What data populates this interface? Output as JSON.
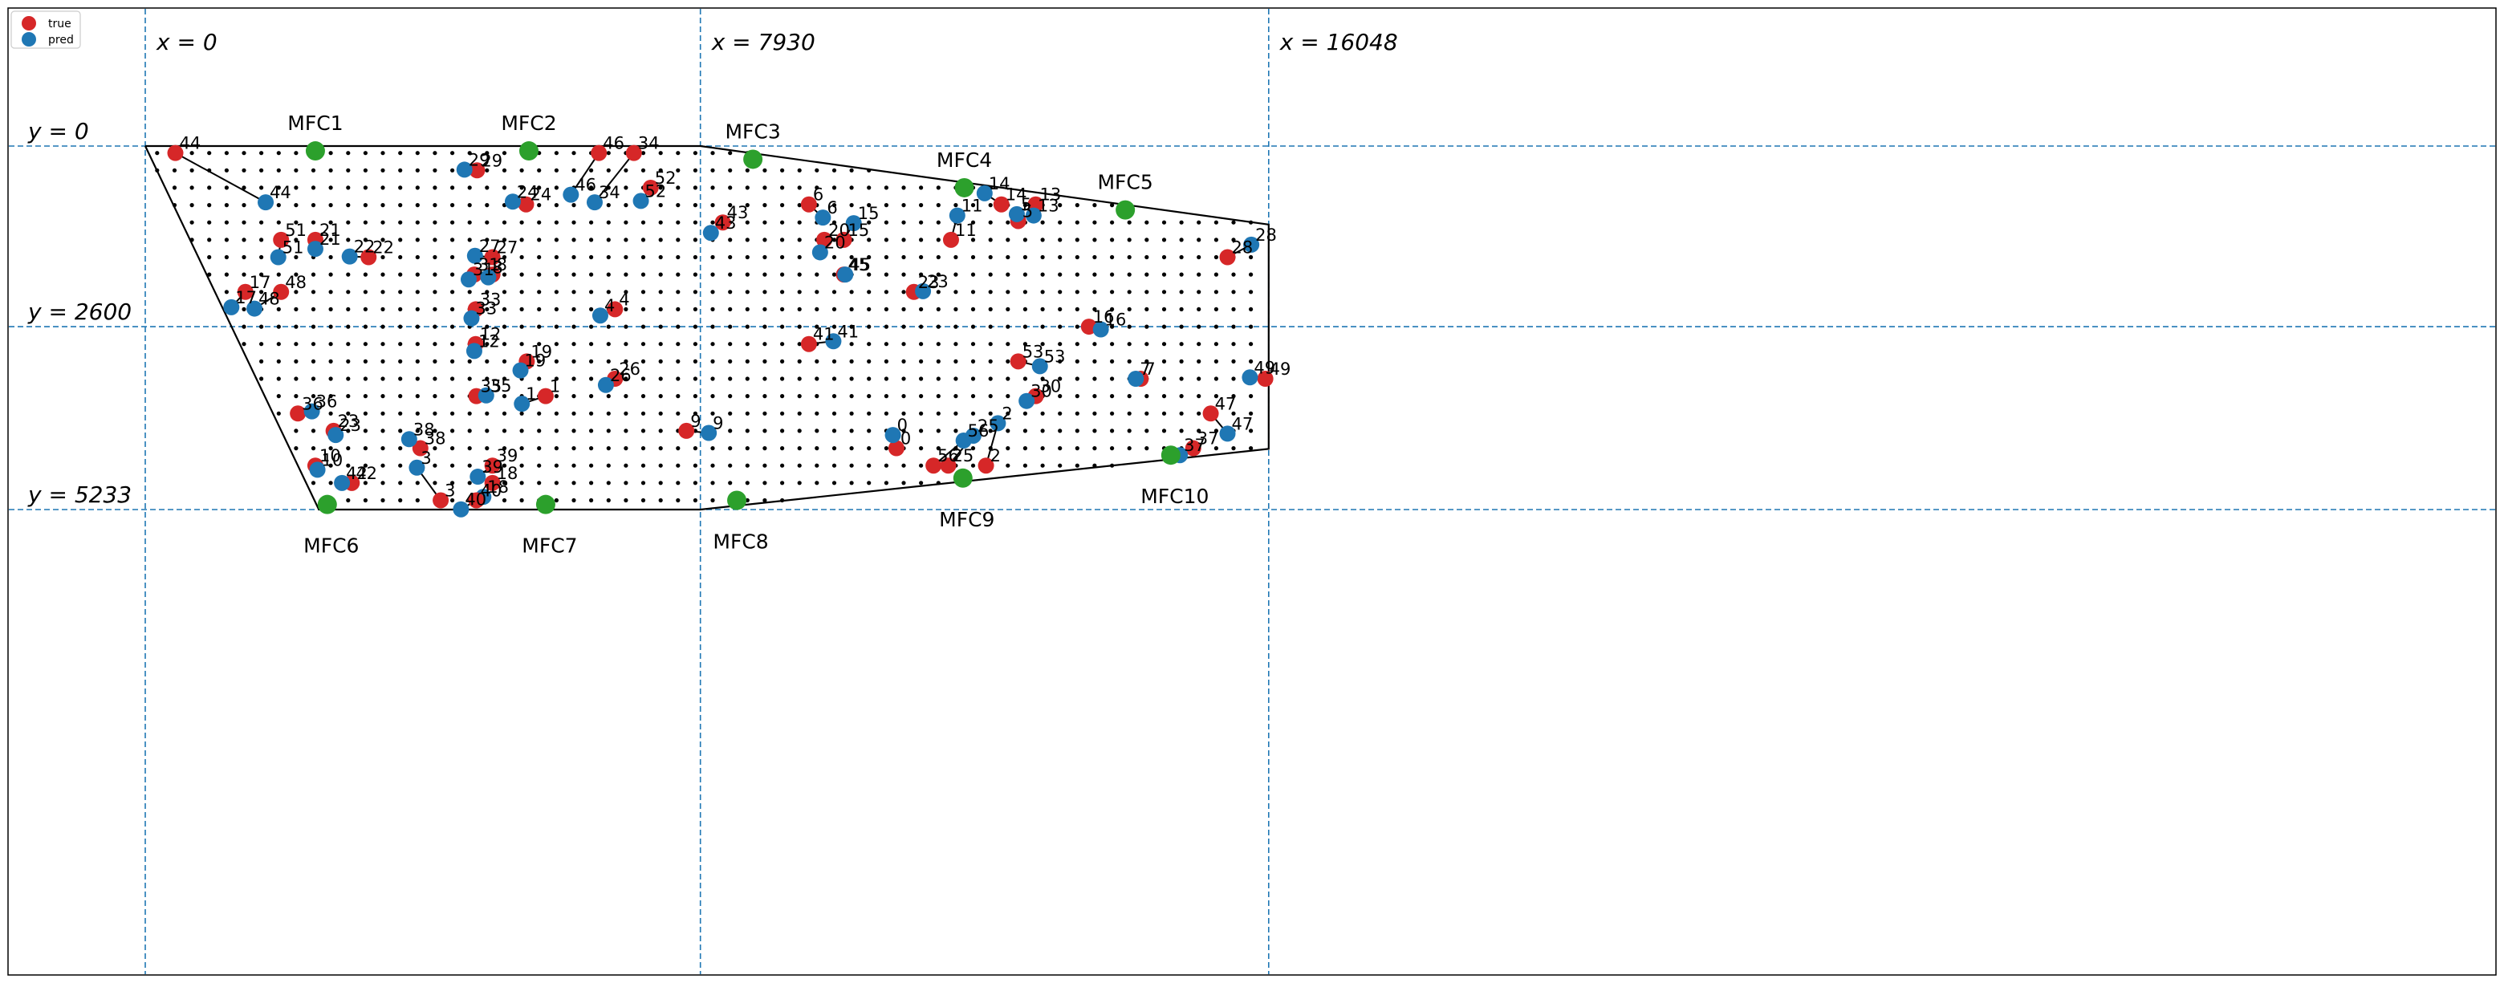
{
  "chart_data": {
    "type": "scatter",
    "title": "",
    "xlabel": "",
    "ylabel": "",
    "xlim": [
      -1700,
      17600
    ],
    "ylim": [
      -1000,
      6100
    ],
    "grid": false,
    "y_inverted": true,
    "legend": {
      "placement": "top-left",
      "entries": [
        {
          "label": "true",
          "color": "#d62728"
        },
        {
          "label": "pred",
          "color": "#1f77b4"
        }
      ]
    },
    "reference_lines": {
      "vertical": [
        {
          "value": 0,
          "label": "x = 0"
        },
        {
          "value": 7930,
          "label": "x = 7930"
        },
        {
          "value": 16048,
          "label": "x = 16048"
        }
      ],
      "horizontal": [
        {
          "value": 0,
          "label": "y = 0"
        },
        {
          "value": 2600,
          "label": "y = 2600"
        },
        {
          "value": 5233,
          "label": "y = 5233"
        }
      ]
    },
    "boundary": [
      [
        0,
        0
      ],
      [
        7930,
        0
      ],
      [
        16048,
        1130
      ],
      [
        16048,
        4360
      ],
      [
        7930,
        5233
      ],
      [
        2480,
        5233
      ],
      [
        0,
        0
      ]
    ],
    "grid_dots": {
      "x_start": 170,
      "x_step": 248,
      "x_end": 16048,
      "y_start": 100,
      "y_step": 250,
      "y_end": 5233
    },
    "mfc": [
      {
        "name": "MFC1",
        "x": 2430,
        "y": 70
      },
      {
        "name": "MFC2",
        "x": 5480,
        "y": 70
      },
      {
        "name": "MFC3",
        "x": 8680,
        "y": 190
      },
      {
        "name": "MFC4",
        "x": 11700,
        "y": 600
      },
      {
        "name": "MFC5",
        "x": 14000,
        "y": 920
      },
      {
        "name": "MFC6",
        "x": 2600,
        "y": 5160
      },
      {
        "name": "MFC7",
        "x": 5720,
        "y": 5160
      },
      {
        "name": "MFC8",
        "x": 8450,
        "y": 5100
      },
      {
        "name": "MFC9",
        "x": 11680,
        "y": 4780
      },
      {
        "name": "MFC10",
        "x": 14650,
        "y": 4450
      }
    ],
    "points": [
      {
        "id": "44",
        "true": [
          430,
          100
        ],
        "pred": [
          1720,
          810
        ]
      },
      {
        "id": "29",
        "true": [
          4740,
          350
        ],
        "pred": [
          4560,
          340
        ]
      },
      {
        "id": "46",
        "true": [
          6480,
          100
        ],
        "pred": [
          6080,
          700
        ]
      },
      {
        "id": "34",
        "true": [
          6980,
          100
        ],
        "pred": [
          6420,
          810
        ]
      },
      {
        "id": "52",
        "true": [
          7220,
          600
        ],
        "pred": [
          7080,
          790
        ]
      },
      {
        "id": "24",
        "true": [
          5440,
          840
        ],
        "pred": [
          5250,
          800
        ]
      },
      {
        "id": "51",
        "true": [
          1940,
          1350
        ],
        "pred": [
          1900,
          1600
        ]
      },
      {
        "id": "21",
        "true": [
          2430,
          1350
        ],
        "pred": [
          2430,
          1480
        ]
      },
      {
        "id": "22",
        "true": [
          3190,
          1600
        ],
        "pred": [
          2920,
          1590
        ]
      },
      {
        "id": "27",
        "true": [
          4960,
          1600
        ],
        "pred": [
          4710,
          1580
        ]
      },
      {
        "id": "31",
        "true": [
          4700,
          1850
        ],
        "pred": [
          4620,
          1920
        ]
      },
      {
        "id": "8",
        "true": [
          4960,
          1850
        ],
        "pred": [
          4900,
          1890
        ]
      },
      {
        "id": "17",
        "true": [
          1430,
          2100
        ],
        "pred": [
          1230,
          2320
        ]
      },
      {
        "id": "48",
        "true": [
          1940,
          2100
        ],
        "pred": [
          1560,
          2340
        ]
      },
      {
        "id": "33",
        "true": [
          4720,
          2350
        ],
        "pred": [
          4660,
          2480
        ]
      },
      {
        "id": "4",
        "true": [
          6710,
          2350
        ],
        "pred": [
          6500,
          2440
        ]
      },
      {
        "id": "43",
        "true": [
          8250,
          1100
        ],
        "pred": [
          8080,
          1250
        ]
      },
      {
        "id": "6",
        "true": [
          9480,
          840
        ],
        "pred": [
          9680,
          1030
        ]
      },
      {
        "id": "15",
        "true": [
          9980,
          1350
        ],
        "pred": [
          10120,
          1110
        ]
      },
      {
        "id": "20",
        "true": [
          9700,
          1350
        ],
        "pred": [
          9640,
          1530
        ]
      },
      {
        "id": "11",
        "true": [
          11510,
          1350
        ],
        "pred": [
          11600,
          1000
        ]
      },
      {
        "id": "14",
        "true": [
          12230,
          840
        ],
        "pred": [
          11990,
          680
        ]
      },
      {
        "id": "5",
        "true": [
          12470,
          1080
        ],
        "pred": [
          12450,
          980
        ]
      },
      {
        "id": "13",
        "true": [
          12720,
          840
        ],
        "pred": [
          12690,
          1000
        ]
      },
      {
        "id": "45",
        "true": [
          9980,
          1850
        ],
        "pred": [
          10000,
          1850
        ]
      },
      {
        "id": "23",
        "true": [
          10980,
          2100
        ],
        "pred": [
          11110,
          2090
        ]
      },
      {
        "id": "28",
        "true": [
          15460,
          1600
        ],
        "pred": [
          15800,
          1420
        ]
      },
      {
        "id": "16",
        "true": [
          13480,
          2600
        ],
        "pred": [
          13650,
          2640
        ]
      },
      {
        "id": "12",
        "true": [
          4720,
          2850
        ],
        "pred": [
          4700,
          2950
        ]
      },
      {
        "id": "19",
        "true": [
          5450,
          3100
        ],
        "pred": [
          5360,
          3230
        ]
      },
      {
        "id": "26",
        "true": [
          6710,
          3350
        ],
        "pred": [
          6580,
          3440
        ]
      },
      {
        "id": "35",
        "true": [
          4730,
          3600
        ],
        "pred": [
          4870,
          3590
        ]
      },
      {
        "id": "1",
        "true": [
          5720,
          3600
        ],
        "pred": [
          5380,
          3710
        ]
      },
      {
        "id": "41",
        "true": [
          9480,
          2850
        ],
        "pred": [
          9830,
          2810
        ]
      },
      {
        "id": "53",
        "true": [
          12470,
          3100
        ],
        "pred": [
          12780,
          3170
        ]
      },
      {
        "id": "7",
        "true": [
          14220,
          3350
        ],
        "pred": [
          14150,
          3350
        ]
      },
      {
        "id": "49",
        "true": [
          16000,
          3350
        ],
        "pred": [
          15780,
          3330
        ]
      },
      {
        "id": "30",
        "true": [
          12720,
          3600
        ],
        "pred": [
          12590,
          3670
        ]
      },
      {
        "id": "36",
        "true": [
          2180,
          3850
        ],
        "pred": [
          2380,
          3820
        ]
      },
      {
        "id": "23b",
        "label": "23",
        "true": [
          2690,
          4100
        ],
        "pred": [
          2720,
          4160
        ]
      },
      {
        "id": "9",
        "true": [
          7730,
          4100
        ],
        "pred": [
          8050,
          4130
        ]
      },
      {
        "id": "38",
        "true": [
          3930,
          4350
        ],
        "pred": [
          3770,
          4220
        ]
      },
      {
        "id": "0",
        "true": [
          10730,
          4350
        ],
        "pred": [
          10680,
          4160
        ]
      },
      {
        "id": "56",
        "true": [
          11260,
          4600
        ],
        "pred": [
          11690,
          4240
        ]
      },
      {
        "id": "25",
        "true": [
          11470,
          4600
        ],
        "pred": [
          11830,
          4170
        ]
      },
      {
        "id": "2",
        "true": [
          12010,
          4600
        ],
        "pred": [
          12180,
          3990
        ]
      },
      {
        "id": "47",
        "true": [
          15220,
          3850
        ],
        "pred": [
          15460,
          4140
        ]
      },
      {
        "id": "37",
        "true": [
          14970,
          4350
        ],
        "pred": [
          14780,
          4450
        ]
      },
      {
        "id": "10",
        "true": [
          2430,
          4600
        ],
        "pred": [
          2460,
          4660
        ]
      },
      {
        "id": "42",
        "true": [
          2950,
          4850
        ],
        "pred": [
          2810,
          4850
        ]
      },
      {
        "id": "3",
        "true": [
          4220,
          5100
        ],
        "pred": [
          3880,
          4630
        ]
      },
      {
        "id": "39",
        "true": [
          4960,
          4600
        ],
        "pred": [
          4750,
          4760
        ]
      },
      {
        "id": "18",
        "true": [
          4960,
          4850
        ],
        "pred": [
          4830,
          5050
        ]
      },
      {
        "id": "40",
        "true": [
          4730,
          5100
        ],
        "pred": [
          4510,
          5230
        ]
      }
    ]
  }
}
